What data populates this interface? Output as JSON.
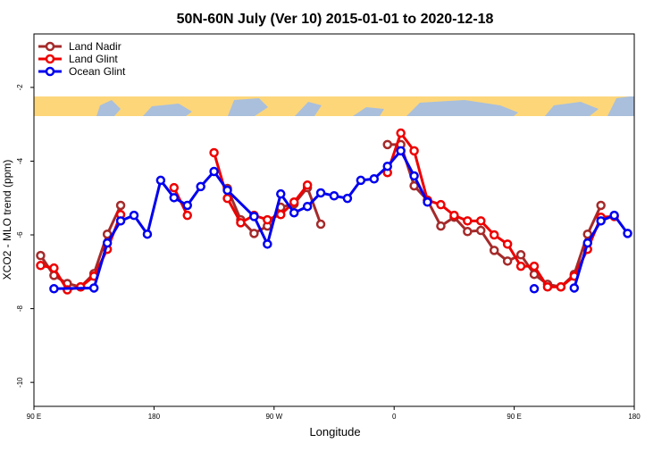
{
  "chart_data": {
    "type": "line",
    "title": "50N-60N July (Ver 10)   2015-01-01 to 2020-12-18",
    "xlabel": "Longitude",
    "ylabel": "XCO2 - MLO trend (ppm)",
    "xlim": [
      90,
      540
    ],
    "ylim": [
      -10.65,
      -0.55
    ],
    "xticks": [
      {
        "value": 90,
        "label": "90 E"
      },
      {
        "value": 180,
        "label": "180"
      },
      {
        "value": 270,
        "label": "90 W"
      },
      {
        "value": 360,
        "label": "0"
      },
      {
        "value": 450,
        "label": "90 E"
      },
      {
        "value": 540,
        "label": "180"
      }
    ],
    "yticks": [
      -10,
      -8,
      -6,
      -4,
      -2
    ],
    "legend": "top-left",
    "series": [
      {
        "name": "Land Nadir",
        "color": "#a52a2a",
        "x": [
          95,
          105,
          115,
          125,
          135,
          145,
          155,
          195,
          235,
          245,
          255,
          265,
          275,
          285,
          295,
          305,
          325,
          355,
          365,
          375,
          385,
          395,
          405,
          415,
          425,
          435,
          445,
          455,
          465,
          475,
          485,
          495,
          505,
          515
        ],
        "values": [
          -6.56,
          -7.1,
          -7.32,
          -7.41,
          -7.05,
          -5.98,
          -5.2,
          null,
          -4.74,
          -5.59,
          -5.96,
          -5.76,
          -5.25,
          -5.16,
          -4.72,
          -5.71,
          null,
          -3.55,
          -3.55,
          -4.67,
          -5.06,
          -5.76,
          -5.52,
          -5.91,
          -5.88,
          -6.42,
          -6.71,
          -6.54,
          -7.07,
          -7.34,
          -7.41,
          -7.07,
          -5.98,
          -5.2
        ]
      },
      {
        "name": "Land Glint",
        "color": "#ee0000",
        "x": [
          95,
          105,
          115,
          125,
          135,
          145,
          155,
          175,
          195,
          205,
          215,
          225,
          235,
          245,
          255,
          265,
          275,
          285,
          295,
          325,
          355,
          365,
          375,
          385,
          395,
          405,
          415,
          425,
          435,
          445,
          455,
          465,
          475,
          485,
          495,
          505,
          515,
          525
        ],
        "values": [
          -6.83,
          -6.9,
          -7.49,
          -7.41,
          -7.12,
          -6.39,
          -5.45,
          null,
          -4.72,
          -5.47,
          null,
          -3.77,
          -5.01,
          -5.67,
          -5.47,
          -5.59,
          -5.45,
          -5.11,
          -4.65,
          null,
          -4.31,
          -3.24,
          -3.72,
          -5.06,
          -5.18,
          -5.47,
          -5.62,
          -5.62,
          -6.0,
          -6.25,
          -6.85,
          -6.85,
          -7.41,
          -7.41,
          -7.12,
          -6.39,
          -5.52,
          -5.5
        ]
      },
      {
        "name": "Ocean Glint",
        "color": "#0000ee",
        "x": [
          105,
          135,
          145,
          155,
          165,
          175,
          185,
          195,
          205,
          215,
          225,
          235,
          255,
          265,
          275,
          285,
          295,
          305,
          315,
          325,
          335,
          345,
          355,
          365,
          375,
          385,
          425,
          465,
          480,
          495,
          505,
          515,
          525,
          535
        ],
        "values": [
          -7.46,
          -7.44,
          -6.22,
          -5.62,
          -5.47,
          -5.98,
          -4.52,
          -4.99,
          -5.2,
          -4.69,
          -4.28,
          -4.79,
          -5.5,
          -6.25,
          -4.89,
          -5.4,
          -5.23,
          -4.86,
          -4.94,
          -5.01,
          -4.52,
          -4.48,
          -4.14,
          -3.72,
          -4.4,
          -5.11,
          null,
          -7.46,
          null,
          -7.44,
          -6.22,
          -5.62,
          -5.47,
          -5.96
        ]
      }
    ]
  }
}
